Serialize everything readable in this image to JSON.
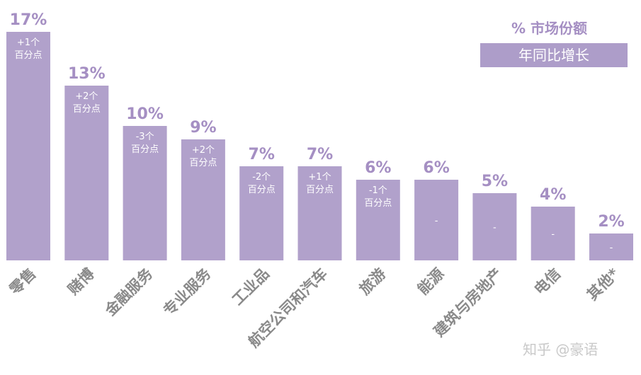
{
  "chart_data": {
    "type": "bar",
    "categories": [
      "零售",
      "赌博",
      "金融服务",
      "专业服务",
      "工业品",
      "航空公司和汽车",
      "旅游",
      "能源",
      "建筑与房地产",
      "电信",
      "其他*"
    ],
    "series": [
      {
        "name": "% 市场份额",
        "values": [
          17,
          13,
          10,
          9,
          7,
          7,
          6,
          6,
          5,
          4,
          2
        ],
        "labels": [
          "17%",
          "13%",
          "10%",
          "9%",
          "7%",
          "7%",
          "6%",
          "6%",
          "5%",
          "4%",
          "2%"
        ]
      },
      {
        "name": "年同比增长",
        "labels": [
          "+1个\n百分点",
          "+2个\n百分点",
          "-3个\n百分点",
          "+2个\n百分点",
          "-2个\n百分点",
          "+1个\n百分点",
          "-1个\n百分点",
          "-",
          "-",
          "-",
          "-"
        ]
      }
    ],
    "ylim": [
      0,
      17
    ],
    "grid": false,
    "legend": "top-right"
  },
  "legend": {
    "share_label": "% 市场份额",
    "growth_label": "年同比增长"
  },
  "watermark": "知乎 @豪语",
  "colors": {
    "bar": "#b1a1cb",
    "value_label": "#a58fc3",
    "category_label": "#8a8a8a"
  }
}
